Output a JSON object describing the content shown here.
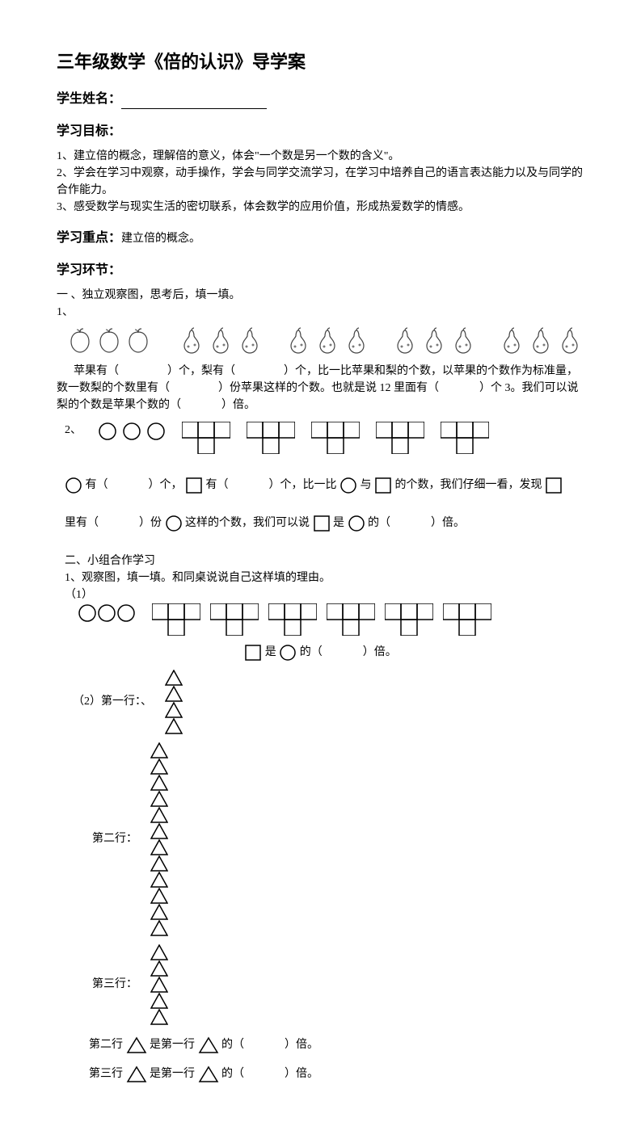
{
  "title": "三年级数学《倍的认识》导学案",
  "student_name_label": "学生姓名：",
  "goals_heading": "学习目标：",
  "goals": [
    "1、建立倍的概念，理解倍的意义，体会\"一个数是另一个数的含义\"。",
    "2、学会在学习中观察，动手操作，学会与同学交流学习，在学习中培养自己的语言表达能力以及与同学的合作能力。",
    "3、感受数学与现实生活的密切联系，体会数学的应用价值，形成热爱数学的情感。"
  ],
  "focus_label": "学习重点：",
  "focus_text": "建立倍的概念。",
  "steps_heading": "学习环节：",
  "section1": {
    "intro": "一 、独立观察图，思考后，填一填。",
    "q1_label": "1、",
    "q1_apples": {
      "count": 3,
      "stroke": "#444444",
      "size": 34
    },
    "q1_pears": {
      "groups": 4,
      "per_group": 3,
      "stroke": "#444444",
      "size": 34,
      "gap_between_groups": 26
    },
    "q1_text_a": "苹果有（",
    "q1_text_b": "）个，梨有（",
    "q1_text_c": "）个，比一比苹果和梨的个数，以苹果的个数作为标准量，数一数梨的个数里有（",
    "q1_text_d": "）份苹果这样的个数。也就是说 12 里面有（",
    "q1_text_e": "）个 3。我们可以说梨的个数是苹果个数的（",
    "q1_text_f": "）倍。",
    "q2_label": "2、",
    "q2_circles": {
      "count": 3,
      "stroke": "#000000",
      "size": 24
    },
    "q2_tblocks": {
      "groups": 5,
      "stroke": "#000000",
      "cell": 20
    },
    "q2_line1_a": "有（",
    "q2_line1_b": "）个，",
    "q2_line1_c": "有（",
    "q2_line1_d": "）个，比一比",
    "q2_line1_e": "与",
    "q2_line1_f": "的个数，我们仔细一看，发现",
    "q2_line2_a": "里有（",
    "q2_line2_b": "）份",
    "q2_line2_c": "这样的个数，我们可以说",
    "q2_line2_d": "是",
    "q2_line2_e": "的（",
    "q2_line2_f": "）倍。"
  },
  "section2": {
    "intro": "二、小组合作学习",
    "sub1": "1、观察图，填一填。和同桌说说自己这样填的理由。",
    "p1_label": "（1）",
    "p1_circles": {
      "count": 3,
      "stroke": "#000000",
      "size": 24
    },
    "p1_tblocks": {
      "groups": 6,
      "stroke": "#000000",
      "cell": 20
    },
    "p1_text_a": "是",
    "p1_text_b": "的（",
    "p1_text_c": "）倍。",
    "p2_label": "（2）第一行：、",
    "rows": {
      "r1": {
        "label": "第一行：、",
        "triangles": 4
      },
      "r2": {
        "label": "第二行：",
        "triangles": 12
      },
      "r3": {
        "label": "第三行：",
        "triangles": 5
      }
    },
    "tri_style": {
      "stroke": "#000000",
      "w": 22,
      "h": 20
    },
    "q_r2_a": "第二行",
    "q_mid": "是第一行",
    "q_tail_a": "的（",
    "q_tail_b": "）倍。",
    "q_r3_a": "第三行"
  }
}
